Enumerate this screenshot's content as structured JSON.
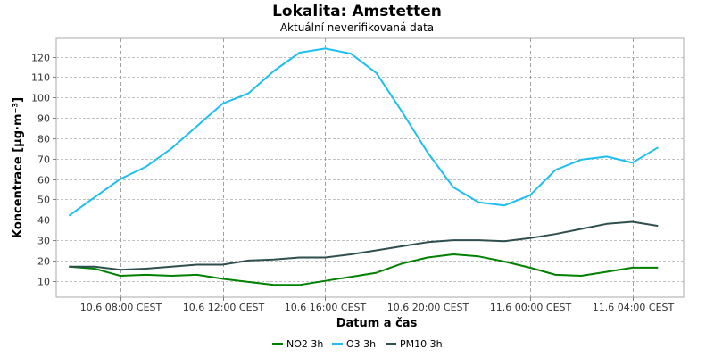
{
  "chart_data": {
    "type": "line",
    "title": "Lokalita: Amstetten",
    "subtitle": "Aktuální neverifikovaná data",
    "xlabel": "Datum a čas",
    "ylabel": "Koncentrace [µg·m⁻³]",
    "ylim": [
      2,
      129
    ],
    "yticks": [
      10,
      20,
      30,
      40,
      50,
      60,
      70,
      80,
      90,
      100,
      110,
      120
    ],
    "xlim": [
      5.5,
      30
    ],
    "xticks": [
      {
        "x": 8,
        "label": "10.6 08:00 CEST"
      },
      {
        "x": 12,
        "label": "10.6 12:00 CEST"
      },
      {
        "x": 16,
        "label": "10.6 16:00 CEST"
      },
      {
        "x": 20,
        "label": "10.6 20:00 CEST"
      },
      {
        "x": 24,
        "label": "11.6 00:00 CEST"
      },
      {
        "x": 28,
        "label": "11.6 04:00 CEST"
      }
    ],
    "x": [
      6,
      7,
      8,
      9,
      10,
      11,
      12,
      13,
      14,
      15,
      16,
      17,
      18,
      19,
      20,
      21,
      22,
      23,
      24,
      25,
      26,
      27,
      28,
      29
    ],
    "grid": true,
    "legend_position": "bottom",
    "series": [
      {
        "name": "NO2 3h",
        "color": "#008000",
        "values": [
          17,
          16,
          12.5,
          13,
          12.5,
          13,
          11,
          9.5,
          8,
          8,
          10,
          12,
          14,
          18.5,
          21.5,
          23,
          22,
          19.5,
          16.5,
          13,
          12.5,
          14.5,
          16.5,
          16.5
        ]
      },
      {
        "name": "O3 3h",
        "color": "#1EBEF0",
        "values": [
          42,
          51,
          60,
          66,
          75,
          86,
          97,
          102,
          113,
          122,
          124,
          121.5,
          112,
          93,
          73,
          56,
          48.5,
          47,
          52,
          64.5,
          69.5,
          71,
          68,
          75.5
        ]
      },
      {
        "name": "PM10 3h",
        "color": "#2F4F4F",
        "values": [
          17,
          17,
          15.5,
          16,
          17,
          18,
          18,
          20,
          20.5,
          21.5,
          21.5,
          23,
          25,
          27,
          29,
          30,
          30,
          29.5,
          31,
          33,
          35.5,
          38,
          39,
          37
        ]
      }
    ]
  }
}
